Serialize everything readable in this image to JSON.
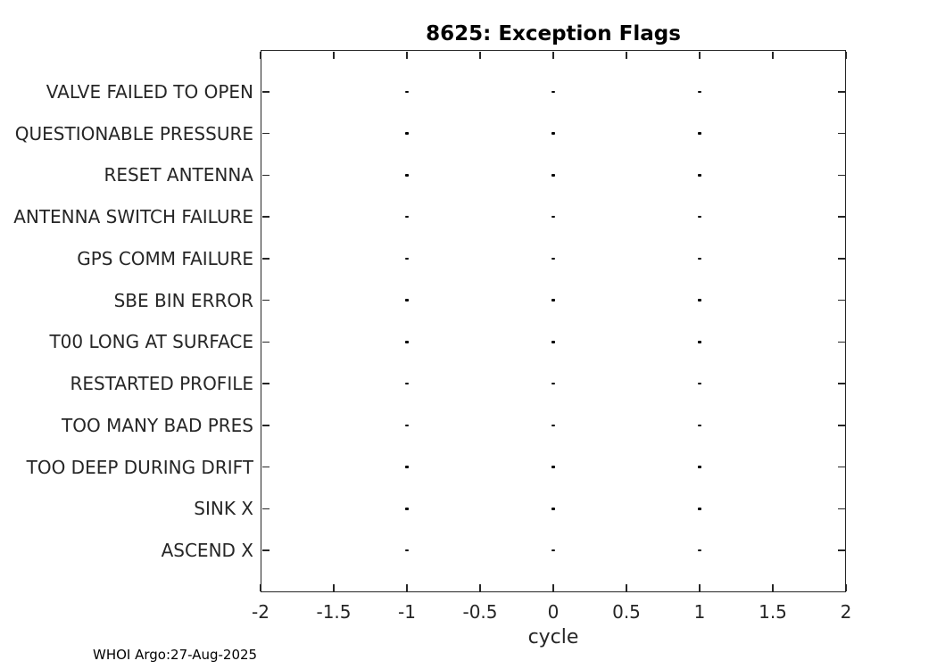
{
  "title": "8625: Exception Flags",
  "footer": "WHOI Argo:27-Aug-2025",
  "colors": {
    "background": "#ffffff",
    "axis": "#262626",
    "tick_label": "#262626",
    "title": "#000000",
    "marker": "#000000"
  },
  "chart_data": {
    "type": "scatter",
    "title": "8625: Exception Flags",
    "xlabel": "cycle",
    "ylabel": "",
    "xlim": [
      -2,
      2
    ],
    "xticks": [
      -2,
      -1.5,
      -1,
      -0.5,
      0,
      0.5,
      1,
      1.5,
      2
    ],
    "xtick_labels": [
      "-2",
      "-1.5",
      "-1",
      "-0.5",
      "0",
      "0.5",
      "1",
      "1.5",
      "2"
    ],
    "grid": false,
    "box": true,
    "legend": "none",
    "marker": ".",
    "marker_color": "#000000",
    "categories": [
      "VALVE FAILED TO OPEN",
      "QUESTIONABLE PRESSURE",
      "RESET ANTENNA",
      "ANTENNA SWITCH FAILURE",
      "GPS COMM FAILURE",
      "SBE BIN ERROR",
      "T00 LONG AT SURFACE",
      "RESTARTED PROFILE",
      "TOO MANY BAD PRES",
      "TOO DEEP DURING DRIFT",
      "SINK X",
      "ASCEND X"
    ],
    "series": [
      {
        "name": "exception-flag-occurrences",
        "x_per_category": [
          -1,
          0,
          1
        ]
      }
    ],
    "rows": [
      {
        "label": "VALVE FAILED TO OPEN",
        "x": [
          -1,
          0,
          1
        ]
      },
      {
        "label": "QUESTIONABLE PRESSURE",
        "x": [
          -1,
          0,
          1
        ]
      },
      {
        "label": "RESET ANTENNA",
        "x": [
          -1,
          0,
          1
        ]
      },
      {
        "label": "ANTENNA SWITCH FAILURE",
        "x": [
          -1,
          0,
          1
        ]
      },
      {
        "label": "GPS COMM FAILURE",
        "x": [
          -1,
          0,
          1
        ]
      },
      {
        "label": "SBE BIN ERROR",
        "x": [
          -1,
          0,
          1
        ]
      },
      {
        "label": "T00 LONG AT SURFACE",
        "x": [
          -1,
          0,
          1
        ]
      },
      {
        "label": "RESTARTED PROFILE",
        "x": [
          -1,
          0,
          1
        ]
      },
      {
        "label": "TOO MANY BAD PRES",
        "x": [
          -1,
          0,
          1
        ]
      },
      {
        "label": "TOO DEEP DURING DRIFT",
        "x": [
          -1,
          0,
          1
        ]
      },
      {
        "label": "SINK X",
        "x": [
          -1,
          0,
          1
        ]
      },
      {
        "label": "ASCEND X",
        "x": [
          -1,
          0,
          1
        ]
      }
    ]
  }
}
